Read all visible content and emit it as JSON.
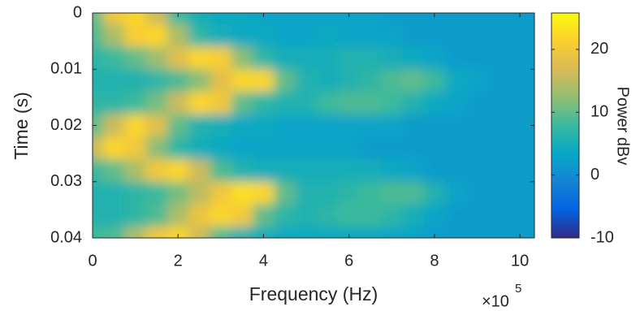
{
  "chart_data": {
    "type": "heatmap",
    "xlabel": "Frequency (Hz)",
    "ylabel": "Time (s)",
    "x_exponent_base": "×10",
    "x_exponent": "5",
    "colorbar_label": "Power dBv",
    "x": [
      0,
      50000,
      100000,
      150000,
      200000,
      250000,
      300000,
      350000,
      400000,
      450000,
      500000,
      550000,
      600000,
      650000,
      700000,
      750000,
      800000,
      850000,
      900000,
      950000,
      1000000
    ],
    "y": [
      0,
      0.004,
      0.008,
      0.012,
      0.016,
      0.02,
      0.024,
      0.028,
      0.032,
      0.036,
      0.04
    ],
    "z": [
      [
        10,
        20,
        22,
        16,
        8,
        5,
        4,
        4,
        3,
        3,
        3,
        3,
        3,
        3,
        2,
        2,
        2,
        2,
        2,
        2,
        2
      ],
      [
        9,
        14,
        21,
        22,
        14,
        7,
        5,
        4,
        4,
        3,
        3,
        4,
        3,
        3,
        3,
        2,
        2,
        2,
        2,
        2,
        2
      ],
      [
        7,
        8,
        10,
        13,
        18,
        22,
        21,
        12,
        7,
        5,
        5,
        5,
        6,
        6,
        5,
        4,
        3,
        2,
        2,
        2,
        2
      ],
      [
        6,
        6,
        6,
        7,
        9,
        12,
        18,
        22,
        22,
        10,
        6,
        5,
        6,
        7,
        9,
        10,
        8,
        4,
        3,
        2,
        2
      ],
      [
        7,
        7,
        8,
        11,
        16,
        22,
        20,
        10,
        7,
        6,
        6,
        8,
        9,
        9,
        8,
        6,
        4,
        3,
        2,
        2,
        2
      ],
      [
        10,
        16,
        22,
        18,
        10,
        6,
        5,
        4,
        4,
        3,
        3,
        3,
        3,
        3,
        3,
        2,
        2,
        2,
        2,
        2,
        2
      ],
      [
        16,
        22,
        20,
        12,
        7,
        5,
        4,
        3,
        3,
        3,
        3,
        3,
        3,
        2,
        2,
        2,
        2,
        2,
        2,
        2,
        2
      ],
      [
        8,
        10,
        14,
        20,
        22,
        16,
        9,
        6,
        5,
        5,
        5,
        5,
        5,
        5,
        4,
        3,
        2,
        2,
        2,
        2,
        2
      ],
      [
        6,
        6,
        7,
        8,
        11,
        15,
        20,
        23,
        22,
        10,
        6,
        6,
        7,
        8,
        9,
        9,
        6,
        3,
        2,
        2,
        2
      ],
      [
        6,
        6,
        7,
        9,
        14,
        19,
        22,
        20,
        10,
        7,
        6,
        7,
        8,
        8,
        7,
        5,
        3,
        2,
        2,
        2,
        2
      ],
      [
        8,
        9,
        14,
        20,
        22,
        16,
        9,
        6,
        5,
        4,
        4,
        4,
        4,
        4,
        3,
        3,
        2,
        2,
        2,
        2,
        2
      ]
    ],
    "xlim": [
      0,
      1034000
    ],
    "ylim": [
      0,
      0.04
    ],
    "clim": [
      -10,
      25.8
    ],
    "xticks": [
      0,
      {
        "value": 200000,
        "label": "2"
      },
      {
        "value": 400000,
        "label": "4"
      },
      {
        "value": 600000,
        "label": "6"
      },
      {
        "value": 800000,
        "label": "8"
      },
      {
        "value": 1000000,
        "label": "10"
      }
    ],
    "yticks": [
      0,
      0.01,
      0.02,
      0.03,
      0.04
    ],
    "cticks": [
      -10,
      0,
      10,
      20
    ],
    "y_reversed": true,
    "colormap": [
      "#352a87",
      "#0363e1",
      "#1484d4",
      "#06a7c6",
      "#38b99e",
      "#92bf73",
      "#d9ba56",
      "#fcce2e",
      "#f9fb0e"
    ]
  }
}
